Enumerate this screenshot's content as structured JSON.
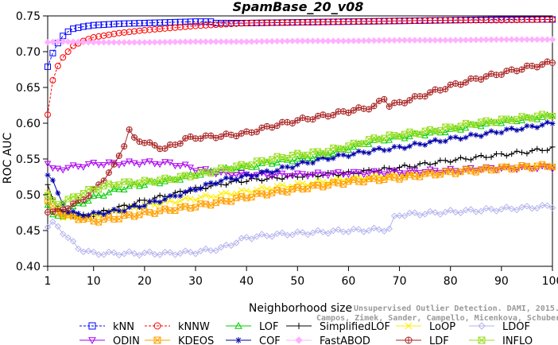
{
  "chart_data": {
    "type": "line",
    "title": "SpamBase_20_v08",
    "xlabel": "Neighborhood size",
    "ylabel": "ROC AUC",
    "xlim": [
      1,
      100
    ],
    "ylim": [
      0.4,
      0.75
    ],
    "x_ticks": [
      1,
      10,
      20,
      30,
      40,
      50,
      60,
      70,
      80,
      90,
      100
    ],
    "y_ticks": [
      "0.40",
      "0.45",
      "0.50",
      "0.55",
      "0.60",
      "0.65",
      "0.70",
      "0.75"
    ],
    "grid": false,
    "legend_position": "bottom",
    "watermark": [
      "Unsupervised Outlier Detection. DAMI, 2015.",
      "Campos, Zimek, Sander, Campello, Micenkova, Schubert, Assent, Houle"
    ],
    "series": [
      {
        "name": "kNN",
        "color": "#0000ff",
        "marker": "square",
        "dashed": true,
        "points": [
          [
            1,
            0.679
          ],
          [
            2,
            0.698
          ],
          [
            3,
            0.712
          ],
          [
            4,
            0.722
          ],
          [
            5,
            0.728
          ],
          [
            6,
            0.732
          ],
          [
            8,
            0.735
          ],
          [
            10,
            0.737
          ],
          [
            15,
            0.739
          ],
          [
            20,
            0.74
          ],
          [
            25,
            0.741
          ],
          [
            30,
            0.742
          ],
          [
            33,
            0.742
          ],
          [
            34,
            0.74
          ],
          [
            40,
            0.74
          ],
          [
            50,
            0.741
          ],
          [
            60,
            0.742
          ],
          [
            70,
            0.743
          ],
          [
            80,
            0.744
          ],
          [
            90,
            0.745
          ],
          [
            100,
            0.745
          ]
        ]
      },
      {
        "name": "kNNW",
        "color": "#ff0000",
        "marker": "circle",
        "dashed": true,
        "points": [
          [
            1,
            0.612
          ],
          [
            2,
            0.66
          ],
          [
            3,
            0.68
          ],
          [
            4,
            0.692
          ],
          [
            5,
            0.7
          ],
          [
            6,
            0.708
          ],
          [
            8,
            0.715
          ],
          [
            10,
            0.72
          ],
          [
            15,
            0.726
          ],
          [
            20,
            0.73
          ],
          [
            25,
            0.733
          ],
          [
            30,
            0.736
          ],
          [
            35,
            0.738
          ],
          [
            40,
            0.74
          ],
          [
            50,
            0.741
          ],
          [
            60,
            0.742
          ],
          [
            70,
            0.743
          ],
          [
            80,
            0.744
          ],
          [
            90,
            0.744
          ],
          [
            100,
            0.745
          ]
        ]
      },
      {
        "name": "LOF",
        "color": "#00cc00",
        "marker": "triangle-up",
        "dashed": false,
        "points": [
          [
            1,
            0.488
          ],
          [
            2,
            0.472
          ],
          [
            3,
            0.468
          ],
          [
            4,
            0.47
          ],
          [
            5,
            0.478
          ],
          [
            7,
            0.486
          ],
          [
            10,
            0.496
          ],
          [
            15,
            0.508
          ],
          [
            20,
            0.515
          ],
          [
            25,
            0.52
          ],
          [
            30,
            0.528
          ],
          [
            35,
            0.535
          ],
          [
            40,
            0.538
          ],
          [
            45,
            0.545
          ],
          [
            50,
            0.55
          ],
          [
            55,
            0.555
          ],
          [
            60,
            0.565
          ],
          [
            65,
            0.575
          ],
          [
            70,
            0.58
          ],
          [
            75,
            0.585
          ],
          [
            80,
            0.59
          ],
          [
            85,
            0.597
          ],
          [
            90,
            0.602
          ],
          [
            95,
            0.606
          ],
          [
            100,
            0.61
          ]
        ]
      },
      {
        "name": "SimplifiedLOF",
        "color": "#000000",
        "marker": "plus",
        "dashed": false,
        "points": [
          [
            1,
            0.512
          ],
          [
            2,
            0.495
          ],
          [
            3,
            0.482
          ],
          [
            4,
            0.475
          ],
          [
            6,
            0.472
          ],
          [
            8,
            0.47
          ],
          [
            10,
            0.472
          ],
          [
            15,
            0.482
          ],
          [
            20,
            0.492
          ],
          [
            25,
            0.5
          ],
          [
            30,
            0.508
          ],
          [
            35,
            0.515
          ],
          [
            40,
            0.52
          ],
          [
            45,
            0.523
          ],
          [
            50,
            0.526
          ],
          [
            55,
            0.528
          ],
          [
            60,
            0.53
          ],
          [
            65,
            0.534
          ],
          [
            70,
            0.538
          ],
          [
            75,
            0.543
          ],
          [
            80,
            0.548
          ],
          [
            85,
            0.552
          ],
          [
            90,
            0.556
          ],
          [
            95,
            0.56
          ],
          [
            100,
            0.565
          ]
        ]
      },
      {
        "name": "LoOP",
        "color": "#ffee00",
        "marker": "x",
        "dashed": false,
        "points": [
          [
            1,
            0.505
          ],
          [
            2,
            0.49
          ],
          [
            3,
            0.478
          ],
          [
            4,
            0.47
          ],
          [
            6,
            0.468
          ],
          [
            10,
            0.47
          ],
          [
            15,
            0.478
          ],
          [
            20,
            0.485
          ],
          [
            25,
            0.49
          ],
          [
            30,
            0.495
          ],
          [
            35,
            0.5
          ],
          [
            40,
            0.505
          ],
          [
            45,
            0.51
          ],
          [
            50,
            0.514
          ],
          [
            55,
            0.518
          ],
          [
            60,
            0.522
          ],
          [
            65,
            0.525
          ],
          [
            70,
            0.528
          ],
          [
            75,
            0.531
          ],
          [
            80,
            0.534
          ],
          [
            85,
            0.536
          ],
          [
            90,
            0.538
          ],
          [
            95,
            0.539
          ],
          [
            100,
            0.54
          ]
        ]
      },
      {
        "name": "LDOF",
        "color": "#b4b4ee",
        "marker": "diamond",
        "dashed": false,
        "points": [
          [
            1,
            0.456
          ],
          [
            2,
            0.46
          ],
          [
            3,
            0.455
          ],
          [
            5,
            0.44
          ],
          [
            7,
            0.425
          ],
          [
            10,
            0.418
          ],
          [
            15,
            0.418
          ],
          [
            20,
            0.418
          ],
          [
            25,
            0.418
          ],
          [
            30,
            0.42
          ],
          [
            35,
            0.425
          ],
          [
            40,
            0.44
          ],
          [
            45,
            0.444
          ],
          [
            50,
            0.446
          ],
          [
            55,
            0.448
          ],
          [
            60,
            0.45
          ],
          [
            65,
            0.451
          ],
          [
            68,
            0.452
          ],
          [
            69,
            0.468
          ],
          [
            70,
            0.472
          ],
          [
            75,
            0.474
          ],
          [
            80,
            0.476
          ],
          [
            85,
            0.478
          ],
          [
            90,
            0.48
          ],
          [
            95,
            0.482
          ],
          [
            100,
            0.484
          ]
        ]
      },
      {
        "name": "ODIN",
        "color": "#aa00ee",
        "marker": "triangle-down",
        "dashed": false,
        "points": [
          [
            1,
            0.545
          ],
          [
            2,
            0.535
          ],
          [
            3,
            0.536
          ],
          [
            5,
            0.538
          ],
          [
            8,
            0.541
          ],
          [
            10,
            0.543
          ],
          [
            15,
            0.544
          ],
          [
            20,
            0.545
          ],
          [
            25,
            0.544
          ],
          [
            28,
            0.54
          ],
          [
            30,
            0.536
          ],
          [
            35,
            0.53
          ],
          [
            40,
            0.528
          ],
          [
            45,
            0.528
          ],
          [
            50,
            0.528
          ],
          [
            55,
            0.529
          ],
          [
            60,
            0.53
          ],
          [
            65,
            0.531
          ],
          [
            70,
            0.532
          ],
          [
            75,
            0.533
          ],
          [
            80,
            0.534
          ],
          [
            85,
            0.536
          ],
          [
            90,
            0.537
          ],
          [
            95,
            0.538
          ],
          [
            100,
            0.538
          ]
        ]
      },
      {
        "name": "KDEOS",
        "color": "#ffa000",
        "marker": "square-x",
        "dashed": false,
        "points": [
          [
            1,
            0.49
          ],
          [
            2,
            0.482
          ],
          [
            3,
            0.476
          ],
          [
            5,
            0.47
          ],
          [
            8,
            0.466
          ],
          [
            10,
            0.463
          ],
          [
            15,
            0.468
          ],
          [
            20,
            0.474
          ],
          [
            25,
            0.479
          ],
          [
            30,
            0.484
          ],
          [
            35,
            0.49
          ],
          [
            40,
            0.497
          ],
          [
            45,
            0.503
          ],
          [
            50,
            0.508
          ],
          [
            55,
            0.513
          ],
          [
            60,
            0.518
          ],
          [
            65,
            0.521
          ],
          [
            70,
            0.524
          ],
          [
            75,
            0.528
          ],
          [
            80,
            0.531
          ],
          [
            85,
            0.534
          ],
          [
            90,
            0.537
          ],
          [
            95,
            0.539
          ],
          [
            100,
            0.541
          ]
        ]
      },
      {
        "name": "COF",
        "color": "#0000aa",
        "marker": "star",
        "dashed": false,
        "points": [
          [
            1,
            0.53
          ],
          [
            2,
            0.52
          ],
          [
            3,
            0.5
          ],
          [
            4,
            0.488
          ],
          [
            5,
            0.478
          ],
          [
            7,
            0.472
          ],
          [
            10,
            0.473
          ],
          [
            15,
            0.478
          ],
          [
            20,
            0.486
          ],
          [
            25,
            0.496
          ],
          [
            30,
            0.508
          ],
          [
            35,
            0.52
          ],
          [
            40,
            0.526
          ],
          [
            45,
            0.533
          ],
          [
            50,
            0.542
          ],
          [
            55,
            0.55
          ],
          [
            60,
            0.556
          ],
          [
            65,
            0.562
          ],
          [
            70,
            0.566
          ],
          [
            75,
            0.572
          ],
          [
            80,
            0.578
          ],
          [
            85,
            0.583
          ],
          [
            90,
            0.589
          ],
          [
            95,
            0.594
          ],
          [
            100,
            0.6
          ]
        ]
      },
      {
        "name": "FastABOD",
        "color": "#ffb0ff",
        "marker": "diamond-filled",
        "dashed": false,
        "points": [
          [
            1,
            0.713
          ],
          [
            3,
            0.714
          ],
          [
            5,
            0.714
          ],
          [
            10,
            0.713
          ],
          [
            20,
            0.713
          ],
          [
            30,
            0.714
          ],
          [
            40,
            0.714
          ],
          [
            50,
            0.715
          ],
          [
            60,
            0.715
          ],
          [
            70,
            0.716
          ],
          [
            80,
            0.716
          ],
          [
            90,
            0.717
          ],
          [
            100,
            0.717
          ]
        ]
      },
      {
        "name": "LDF",
        "color": "#aa2222",
        "marker": "circle-plus",
        "dashed": false,
        "points": [
          [
            1,
            0.478
          ],
          [
            2,
            0.476
          ],
          [
            4,
            0.48
          ],
          [
            6,
            0.486
          ],
          [
            8,
            0.495
          ],
          [
            10,
            0.505
          ],
          [
            12,
            0.522
          ],
          [
            14,
            0.54
          ],
          [
            16,
            0.57
          ],
          [
            17,
            0.59
          ],
          [
            18,
            0.578
          ],
          [
            20,
            0.574
          ],
          [
            22,
            0.568
          ],
          [
            24,
            0.565
          ],
          [
            26,
            0.57
          ],
          [
            28,
            0.578
          ],
          [
            30,
            0.58
          ],
          [
            35,
            0.582
          ],
          [
            40,
            0.586
          ],
          [
            45,
            0.596
          ],
          [
            50,
            0.604
          ],
          [
            55,
            0.61
          ],
          [
            60,
            0.617
          ],
          [
            65,
            0.623
          ],
          [
            67,
            0.635
          ],
          [
            68,
            0.625
          ],
          [
            70,
            0.628
          ],
          [
            75,
            0.64
          ],
          [
            80,
            0.652
          ],
          [
            85,
            0.662
          ],
          [
            90,
            0.67
          ],
          [
            95,
            0.678
          ],
          [
            100,
            0.685
          ]
        ]
      },
      {
        "name": "INFLO",
        "color": "#99dd22",
        "marker": "square-x",
        "dashed": false,
        "points": [
          [
            1,
            0.498
          ],
          [
            2,
            0.49
          ],
          [
            3,
            0.488
          ],
          [
            5,
            0.492
          ],
          [
            7,
            0.5
          ],
          [
            10,
            0.508
          ],
          [
            15,
            0.516
          ],
          [
            20,
            0.518
          ],
          [
            25,
            0.522
          ],
          [
            30,
            0.528
          ],
          [
            35,
            0.535
          ],
          [
            40,
            0.542
          ],
          [
            45,
            0.55
          ],
          [
            50,
            0.556
          ],
          [
            55,
            0.56
          ],
          [
            60,
            0.568
          ],
          [
            65,
            0.578
          ],
          [
            70,
            0.584
          ],
          [
            75,
            0.588
          ],
          [
            80,
            0.594
          ],
          [
            85,
            0.6
          ],
          [
            90,
            0.604
          ],
          [
            95,
            0.608
          ],
          [
            100,
            0.612
          ]
        ]
      }
    ],
    "legend_order": [
      "kNN",
      "kNNW",
      "LOF",
      "SimplifiedLOF",
      "LoOP",
      "LDOF",
      "ODIN",
      "KDEOS",
      "COF",
      "FastABOD",
      "LDF",
      "INFLO"
    ]
  }
}
